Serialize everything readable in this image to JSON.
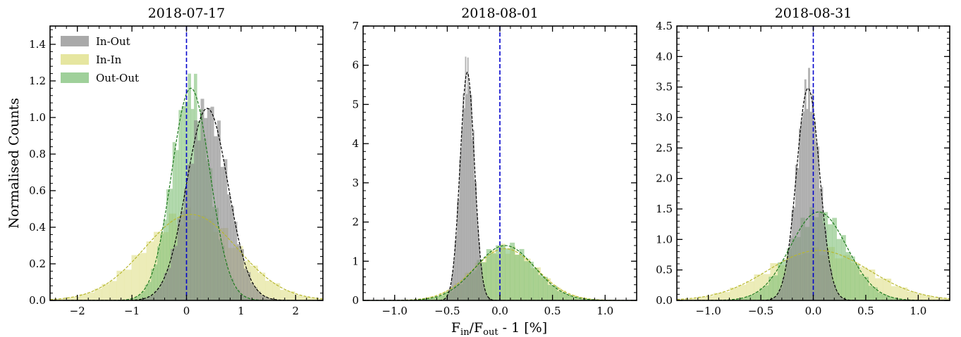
{
  "figure": {
    "xlabel_main": "F",
    "xlabel_sub_in": "in",
    "xlabel_mid": "/F",
    "xlabel_sub_out": "out",
    "xlabel_tail": " - 1 [%]",
    "ylabel": "Normalised Counts"
  },
  "legend": {
    "placement": "upper-left of first panel",
    "items": [
      {
        "label": "In-Out",
        "color": "#a9a9a9"
      },
      {
        "label": "In-In",
        "color": "#e6e6a0"
      },
      {
        "label": "Out-Out",
        "color": "#9fd09a"
      }
    ]
  },
  "chart_data": [
    {
      "type": "histogram",
      "title": "2018-07-17",
      "xlim": [
        -2.5,
        2.5
      ],
      "ylim": [
        0,
        1.5
      ],
      "xticks": [
        -2,
        -1,
        0,
        1,
        2
      ],
      "yticks": [
        0.0,
        0.2,
        0.4,
        0.6,
        0.8,
        1.0,
        1.2,
        1.4
      ],
      "vline_x": 0,
      "series": [
        {
          "name": "In-In",
          "fit": {
            "mu": 0.08,
            "sigma": 0.85,
            "amp": 0.47
          }
        },
        {
          "name": "Out-Out",
          "fit": {
            "mu": 0.08,
            "sigma": 0.35,
            "amp": 1.16
          }
        },
        {
          "name": "In-Out",
          "fit": {
            "mu": 0.38,
            "sigma": 0.38,
            "amp": 1.05
          }
        }
      ]
    },
    {
      "type": "histogram",
      "title": "2018-08-01",
      "xlim": [
        -1.3,
        1.3
      ],
      "ylim": [
        0,
        7.0
      ],
      "xticks": [
        -1.0,
        -0.5,
        0.0,
        0.5,
        1.0
      ],
      "yticks": [
        0.0,
        1.0,
        2.0,
        3.0,
        4.0,
        5.0,
        6.0,
        7.0
      ],
      "vline_x": 0,
      "series": [
        {
          "name": "In-In",
          "fit": {
            "mu": 0.05,
            "sigma": 0.3,
            "amp": 1.32
          }
        },
        {
          "name": "Out-Out",
          "fit": {
            "mu": 0.05,
            "sigma": 0.28,
            "amp": 1.4
          }
        },
        {
          "name": "In-Out",
          "fit": {
            "mu": -0.31,
            "sigma": 0.068,
            "amp": 5.82
          }
        }
      ]
    },
    {
      "type": "histogram",
      "title": "2018-08-31",
      "xlim": [
        -1.3,
        1.3
      ],
      "ylim": [
        0,
        4.5
      ],
      "xticks": [
        -1.0,
        -0.5,
        0.0,
        0.5,
        1.0
      ],
      "yticks": [
        0.0,
        0.5,
        1.0,
        1.5,
        2.0,
        2.5,
        3.0,
        3.5,
        4.0,
        4.5
      ],
      "vline_x": 0,
      "series": [
        {
          "name": "In-In",
          "fit": {
            "mu": 0.05,
            "sigma": 0.48,
            "amp": 0.82
          }
        },
        {
          "name": "Out-Out",
          "fit": {
            "mu": 0.05,
            "sigma": 0.27,
            "amp": 1.45
          }
        },
        {
          "name": "In-Out",
          "fit": {
            "mu": -0.05,
            "sigma": 0.11,
            "amp": 3.48
          }
        }
      ]
    }
  ]
}
